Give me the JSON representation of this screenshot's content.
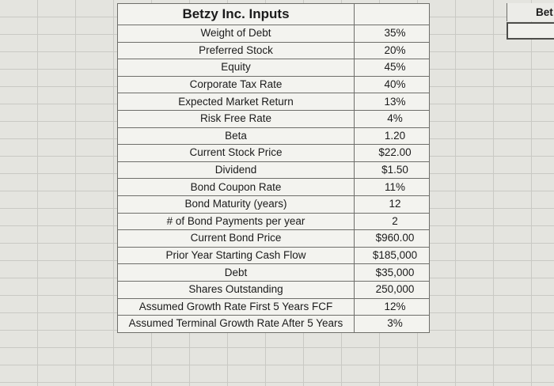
{
  "table": {
    "title": "Betzy Inc. Inputs",
    "rows": [
      {
        "label": "Weight of Debt",
        "value": "35%"
      },
      {
        "label": "Preferred Stock",
        "value": "20%"
      },
      {
        "label": "Equity",
        "value": "45%"
      },
      {
        "label": "Corporate Tax Rate",
        "value": "40%"
      },
      {
        "label": "Expected Market Return",
        "value": "13%"
      },
      {
        "label": "Risk Free Rate",
        "value": "4%"
      },
      {
        "label": "Beta",
        "value": "1.20"
      },
      {
        "label": "Current Stock Price",
        "value": "$22.00"
      },
      {
        "label": "Dividend",
        "value": "$1.50"
      },
      {
        "label": "Bond Coupon Rate",
        "value": "11%"
      },
      {
        "label": "Bond Maturity (years)",
        "value": "12"
      },
      {
        "label": "# of Bond Payments per year",
        "value": "2"
      },
      {
        "label": "Current Bond Price",
        "value": "$960.00"
      },
      {
        "label": "Prior Year Starting Cash Flow",
        "value": "$185,000"
      },
      {
        "label": "Debt",
        "value": "$35,000"
      },
      {
        "label": "Shares Outstanding",
        "value": "250,000"
      },
      {
        "label": "Assumed Growth Rate First 5 Years FCF",
        "value": "12%"
      },
      {
        "label": "Assumed Terminal Growth Rate After 5 Years",
        "value": "3%"
      }
    ]
  },
  "side": {
    "cut_off_text": "Bet"
  }
}
